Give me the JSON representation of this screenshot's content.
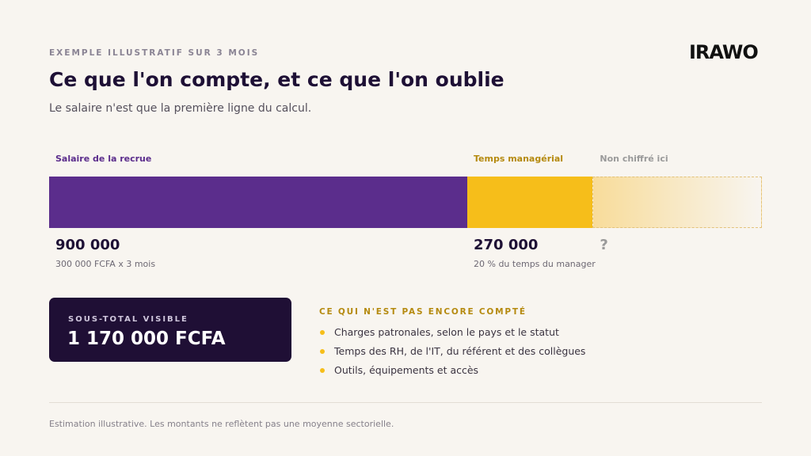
{
  "header": {
    "eyebrow": "EXEMPLE ILLUSTRATIF SUR 3 MOIS",
    "title": "Ce que l'on compte, et ce que l'on oublie",
    "subtitle": "Le salaire n'est que la première ligne du calcul.",
    "logo": "IRAWO"
  },
  "breakdown": {
    "segments": [
      {
        "label": "Salaire de la recrue",
        "value": 900000,
        "value_label": "900 000",
        "note": "300 000 FCFA x 3 mois",
        "color": "#5b2d8c"
      },
      {
        "label": "Temps managérial",
        "value": 270000,
        "value_label": "270 000",
        "note": "20 % du temps du manager",
        "color": "#f6be1a"
      }
    ],
    "unknown": {
      "label": "Non chiffré ici",
      "value_label": "?"
    }
  },
  "subtotal": {
    "label": "SOUS-TOTAL VISIBLE",
    "value": "1 170 000 FCFA"
  },
  "missing": {
    "title": "CE QUI N'EST PAS ENCORE COMPTÉ",
    "items": [
      "Charges patronales, selon le pays et le statut",
      "Temps des RH, de l'IT, du référent et des collègues",
      "Outils, équipements et accès"
    ]
  },
  "footnote": "Estimation illustrative. Les montants ne reflètent pas une moyenne sectorielle."
}
